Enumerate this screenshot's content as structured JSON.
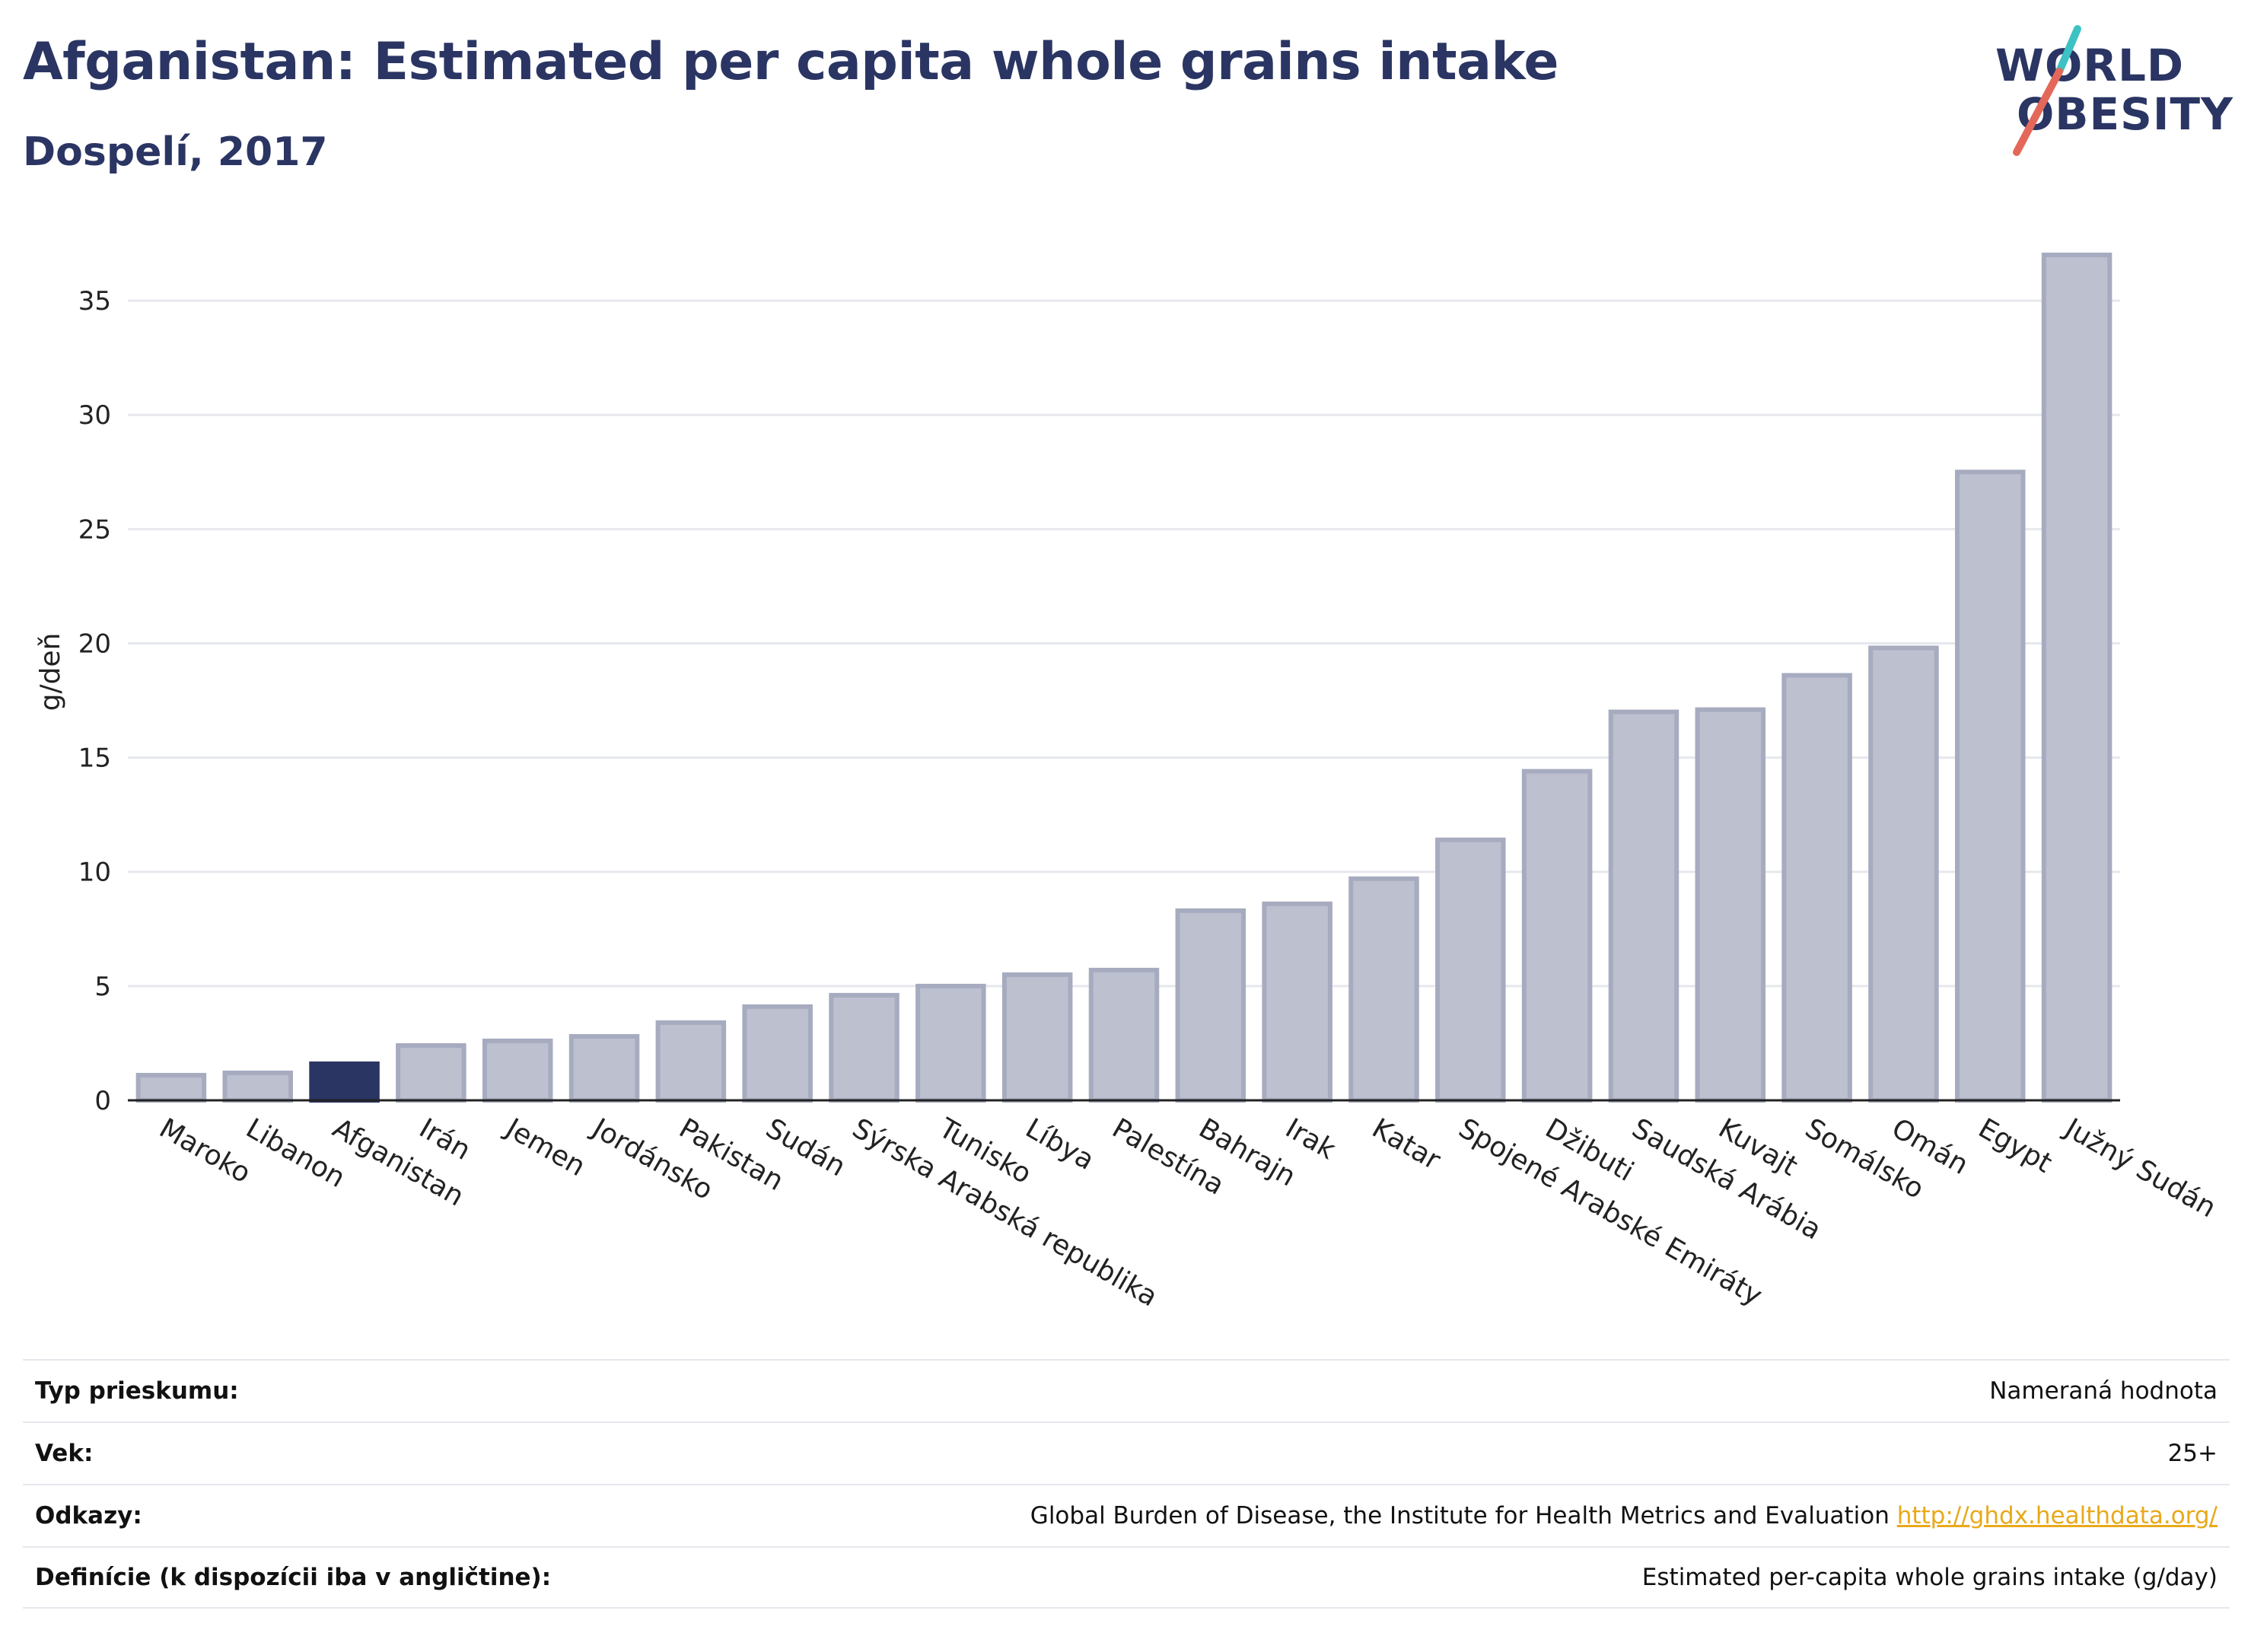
{
  "header": {
    "title": "Afganistan: Estimated per capita whole grains intake",
    "subtitle": "Dospelí, 2017"
  },
  "logo": {
    "line1": "WORLD",
    "line2": "OBESITY",
    "accent_teal": "#3cc2c4",
    "accent_red": "#e4685a"
  },
  "chart_data": {
    "type": "bar",
    "title": "Afganistan: Estimated per capita whole grains intake",
    "subtitle": "Dospelí, 2017",
    "ylabel": "g/deň",
    "xlabel": "",
    "ylim": [
      0,
      37.5
    ],
    "yticks": [
      0,
      5,
      10,
      15,
      20,
      25,
      30,
      35
    ],
    "grid": true,
    "highlight": "Afganistan",
    "colors": {
      "bar": "#bcc0cf",
      "bar_edge": "#a7abbf",
      "highlight": "#2a3563",
      "grid": "#e6e8ee"
    },
    "categories": [
      "Maroko",
      "Libanon",
      "Afganistan",
      "Irán",
      "Jemen",
      "Jordánsko",
      "Pakistan",
      "Sudán",
      "Sýrska Arabská republika",
      "Tunisko",
      "Líbya",
      "Palestína",
      "Bahrajn",
      "Irak",
      "Katar",
      "Spojené Arabské Emiráty",
      "Džibuti",
      "Saudská Arábia",
      "Kuvajt",
      "Somálsko",
      "Omán",
      "Egypt",
      "Južný Sudán"
    ],
    "values": [
      1.1,
      1.2,
      1.6,
      2.4,
      2.6,
      2.8,
      3.4,
      4.1,
      4.6,
      5.0,
      5.5,
      5.7,
      8.3,
      8.6,
      9.7,
      11.4,
      14.4,
      17.0,
      17.1,
      18.6,
      19.8,
      27.5,
      37.0
    ]
  },
  "footer": {
    "rows": [
      {
        "key": "Typ prieskumu:",
        "value": "Nameraná hodnota"
      },
      {
        "key": "Vek:",
        "value": "25+"
      },
      {
        "key": "Odkazy:",
        "value": "Global Burden of Disease, the Institute for Health Metrics and Evaluation",
        "link": "http://ghdx.healthdata.org/"
      },
      {
        "key": "Definície (k dispozícii iba v angličtine):",
        "value": "Estimated per-capita whole grains intake (g/day)"
      }
    ]
  }
}
